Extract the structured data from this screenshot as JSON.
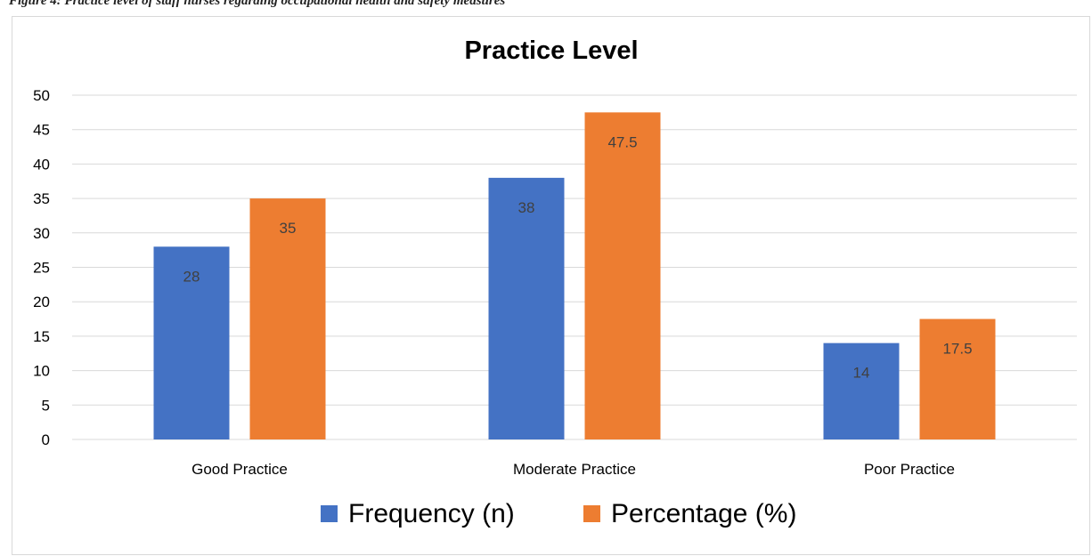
{
  "caption": "Figure 4: Practice level of staff nurses regarding occupational health and safety measures",
  "chart_data": {
    "type": "bar",
    "title": "Practice Level",
    "xlabel": "",
    "ylabel": "",
    "categories": [
      "Good Practice",
      "Moderate Practice",
      "Poor Practice"
    ],
    "series": [
      {
        "name": "Frequency (n)",
        "values": [
          28,
          38,
          14
        ],
        "color": "#4472c4",
        "labels": [
          "28",
          "38",
          "14"
        ]
      },
      {
        "name": "Percentage (%)",
        "values": [
          35,
          47.5,
          17.5
        ],
        "color": "#ed7d31",
        "labels": [
          "35",
          "47.5",
          "17.5"
        ]
      }
    ],
    "ylim": [
      0,
      50
    ],
    "yticks": [
      0,
      5,
      10,
      15,
      20,
      25,
      30,
      35,
      40,
      45,
      50
    ],
    "grid": true,
    "gridColor": "#d9d9d9",
    "legend": "bottom"
  }
}
